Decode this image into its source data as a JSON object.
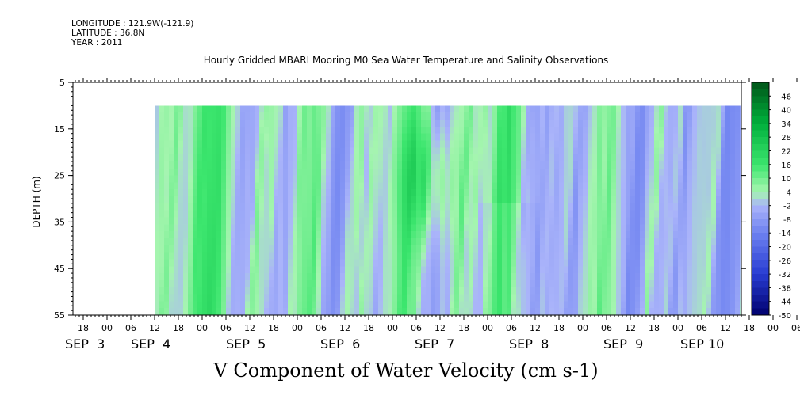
{
  "header": {
    "longitude": "LONGITUDE : 121.9W(-121.9)",
    "latitude": "LATITUDE : 36.8N",
    "year": "YEAR : 2011",
    "title": "Hourly Gridded MBARI Mooring M0 Sea Water Temperature and Salinity Observations"
  },
  "chart_data": {
    "type": "heatmap",
    "title": "Hourly Gridded MBARI Mooring M0 Sea Water Temperature and Salinity Observations",
    "xlabel": "V Component of Water Velocity (cm s-1)",
    "ylabel": "DEPTH (m)",
    "ylim": [
      5,
      55
    ],
    "y_inverted": true,
    "y_ticks": [
      5,
      15,
      25,
      35,
      45,
      55
    ],
    "x_hour_ticks": [
      "18",
      "00",
      "06",
      "12",
      "18",
      "00",
      "06",
      "12",
      "18",
      "00",
      "06",
      "12",
      "18",
      "00",
      "06",
      "12",
      "18",
      "00",
      "06",
      "12",
      "18",
      "00",
      "06",
      "12",
      "18",
      "00",
      "06",
      "12",
      "18",
      "00",
      "06",
      "12"
    ],
    "x_day_labels": [
      "SEP  3",
      "SEP  4",
      "SEP  5",
      "SEP  6",
      "SEP  7",
      "SEP  8",
      "SEP  9",
      "SEP 10"
    ],
    "data_depth_range": [
      10,
      55
    ],
    "colorbar": {
      "labels": [
        46,
        40,
        34,
        28,
        22,
        16,
        10,
        4,
        -2,
        -8,
        -14,
        -20,
        -26,
        -32,
        -38,
        -44,
        -50
      ],
      "range": [
        -50,
        52
      ]
    },
    "series_summary": "V velocity by time (Sep 3 ~12:00 to Sep 10 ~16:00) and depth (10-55 m), values mostly between about -8 and +22 cm/s; strongest positive near Sep 6 ~08:00 at 20-30 m"
  }
}
